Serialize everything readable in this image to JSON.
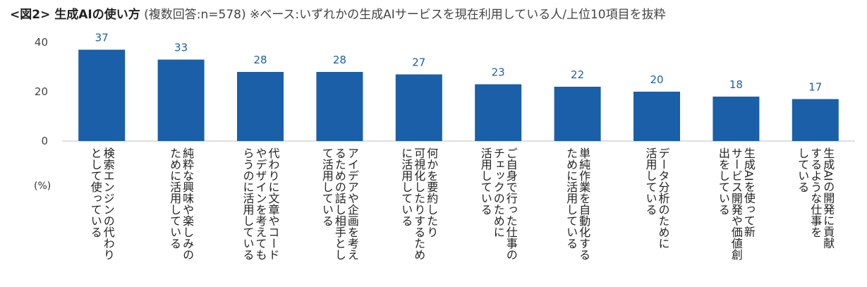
{
  "title": {
    "main": "<図2> 生成AIの使い方",
    "sub": "(複数回答:n=578)",
    "note": "※ベース:いずれかの生成AIサービスを現在利用している人/上位10項目を抜粋"
  },
  "unit_label": "(%)",
  "colors": {
    "bar": "#1a5fa8",
    "axis": "#bfbfbf",
    "label": "#1f5fa3"
  },
  "chart_data": {
    "type": "bar",
    "title": "<図2> 生成AIの使い方",
    "ylabel": "(%)",
    "ylim": [
      0,
      40
    ],
    "yticks": [
      0,
      20,
      40
    ],
    "categories": [
      [
        "検索エンジンの代わり",
        "として使っている"
      ],
      [
        "純粋な興味や楽しみの",
        "ために活用している"
      ],
      [
        "代わりに文章やコード",
        "やデザインを考えても",
        "らうのに活用している"
      ],
      [
        "アイデアや企画を考え",
        "るための話し相手とし",
        "て活用している"
      ],
      [
        "何かを要約したり",
        "可視化したりするため",
        "に活用している"
      ],
      [
        "ご自身で行った仕事の",
        "チェックのために",
        "活用している"
      ],
      [
        "単純作業を自動化する",
        "ために活用している"
      ],
      [
        "データ分析のために",
        "活用している"
      ],
      [
        "生成AIを使って新",
        "サービス開発や価値創",
        "出をしている"
      ],
      [
        "生成AIの開発に貢献",
        "するような仕事を",
        "している"
      ]
    ],
    "values": [
      37,
      33,
      28,
      28,
      27,
      23,
      22,
      20,
      18,
      17
    ]
  }
}
